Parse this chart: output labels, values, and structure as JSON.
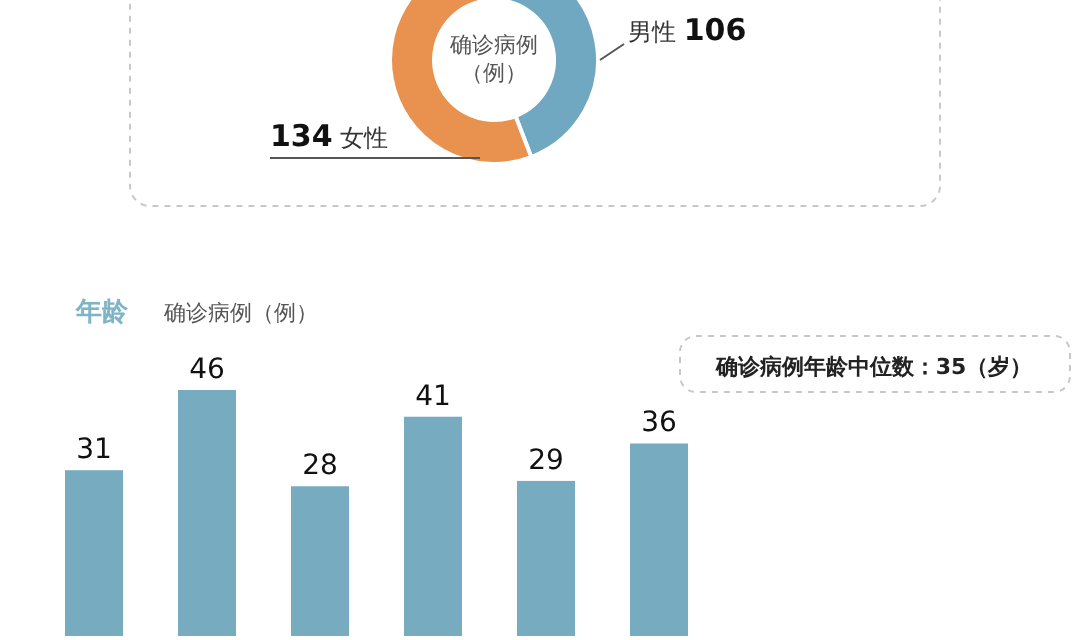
{
  "chart_data": [
    {
      "type": "donut",
      "title": "确诊病例（例）",
      "categories": [
        "男性",
        "女性"
      ],
      "values": [
        106,
        134
      ],
      "colors": [
        "#6fa8c0",
        "#e9914f"
      ],
      "data_labels": true
    },
    {
      "type": "bar",
      "title": "年龄",
      "subtitle": "确诊病例（例）",
      "categories": [
        null,
        null,
        null,
        null,
        null,
        null
      ],
      "values": [
        31,
        46,
        28,
        41,
        29,
        36
      ],
      "color": "#76abc0",
      "data_labels": true,
      "annotations": [
        "确诊病例年龄中位数：35（岁）"
      ]
    }
  ]
}
